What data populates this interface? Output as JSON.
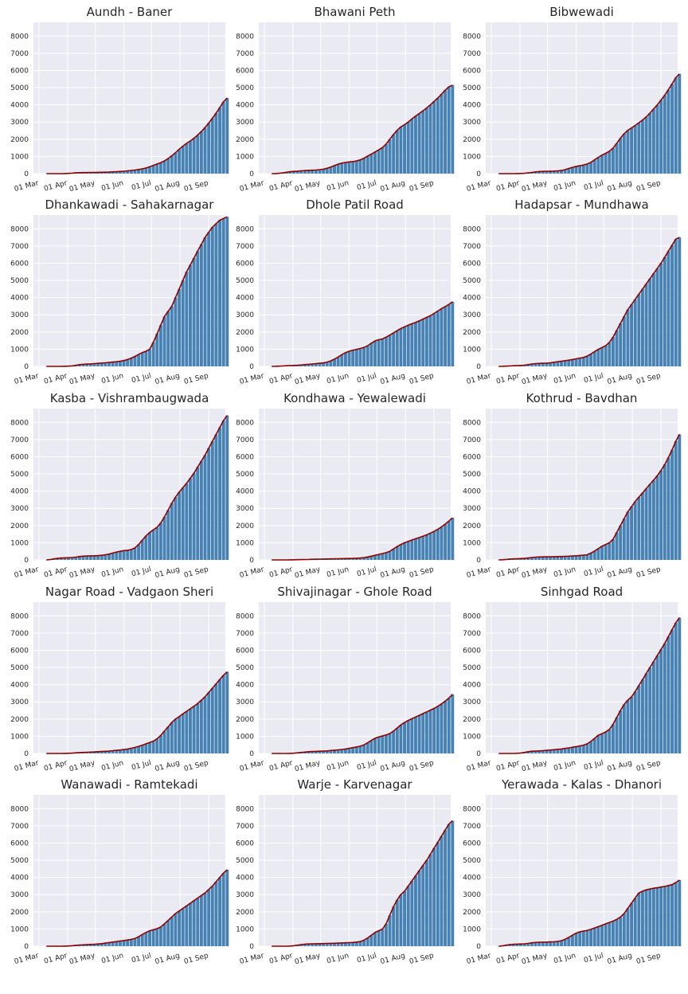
{
  "chart_data": {
    "type": "bar",
    "overlay": "line",
    "ylim": [
      0,
      8800
    ],
    "yticks": [
      0,
      1000,
      2000,
      3000,
      4000,
      5000,
      6000,
      7000,
      8000
    ],
    "x_tick_labels": [
      "01 Mar",
      "01 Apr",
      "01 May",
      "01 Jun",
      "01 Jul",
      "01 Aug",
      "01 Sep"
    ],
    "x_range": [
      "2020-02-24",
      "2020-09-19"
    ],
    "first_date": "2020-03-09",
    "interval_days": 4,
    "grid": true,
    "bar_color": "#4682b4",
    "line_color": "#8b0000",
    "background": "#eaeaf2",
    "panels": [
      {
        "title": "Aundh - Baner",
        "values": [
          0,
          0,
          0,
          0,
          0,
          5,
          15,
          30,
          50,
          55,
          60,
          62,
          65,
          70,
          75,
          80,
          85,
          90,
          100,
          110,
          125,
          140,
          160,
          185,
          210,
          240,
          280,
          330,
          400,
          480,
          560,
          640,
          740,
          880,
          1040,
          1220,
          1420,
          1600,
          1760,
          1900,
          2060,
          2240,
          2450,
          2680,
          2940,
          3220,
          3520,
          3840,
          4180,
          4400
        ]
      },
      {
        "title": "Bhawani Peth",
        "values": [
          0,
          5,
          20,
          40,
          80,
          110,
          130,
          145,
          160,
          175,
          190,
          200,
          210,
          230,
          260,
          310,
          380,
          470,
          550,
          610,
          650,
          680,
          700,
          740,
          800,
          900,
          1020,
          1140,
          1260,
          1380,
          1520,
          1720,
          2000,
          2280,
          2520,
          2720,
          2850,
          3000,
          3180,
          3350,
          3500,
          3650,
          3820,
          4000,
          4200,
          4400,
          4620,
          4850,
          5050,
          5150
        ]
      },
      {
        "title": "Bibwewadi",
        "values": [
          0,
          0,
          0,
          0,
          0,
          5,
          10,
          20,
          40,
          70,
          100,
          120,
          130,
          140,
          145,
          150,
          160,
          180,
          230,
          300,
          360,
          420,
          460,
          500,
          560,
          660,
          800,
          950,
          1080,
          1180,
          1300,
          1480,
          1760,
          2060,
          2320,
          2520,
          2660,
          2800,
          2960,
          3120,
          3300,
          3520,
          3760,
          4000,
          4280,
          4560,
          4880,
          5220,
          5580,
          5800
        ]
      },
      {
        "title": "Dhankawadi - Sahakarnagar",
        "values": [
          0,
          0,
          0,
          0,
          0,
          5,
          15,
          30,
          60,
          100,
          120,
          135,
          145,
          160,
          175,
          190,
          210,
          230,
          250,
          270,
          300,
          340,
          400,
          480,
          580,
          700,
          800,
          880,
          1000,
          1400,
          1900,
          2400,
          2900,
          3200,
          3500,
          4000,
          4500,
          5000,
          5500,
          5900,
          6300,
          6700,
          7100,
          7500,
          7800,
          8100,
          8300,
          8500,
          8600,
          8700
        ]
      },
      {
        "title": "Dhole Patil Road",
        "values": [
          0,
          5,
          15,
          25,
          35,
          45,
          55,
          65,
          80,
          100,
          120,
          140,
          160,
          180,
          200,
          250,
          320,
          420,
          540,
          680,
          800,
          880,
          940,
          990,
          1040,
          1100,
          1200,
          1350,
          1480,
          1550,
          1600,
          1700,
          1820,
          1950,
          2080,
          2200,
          2300,
          2400,
          2480,
          2560,
          2650,
          2750,
          2850,
          2950,
          3080,
          3220,
          3360,
          3480,
          3600,
          3760
        ]
      },
      {
        "title": "Hadapsar - Mundhawa",
        "values": [
          0,
          5,
          15,
          25,
          35,
          45,
          55,
          70,
          100,
          140,
          160,
          170,
          180,
          190,
          210,
          240,
          270,
          300,
          330,
          360,
          400,
          440,
          480,
          520,
          600,
          720,
          860,
          990,
          1100,
          1200,
          1400,
          1700,
          2100,
          2500,
          2900,
          3300,
          3600,
          3900,
          4200,
          4500,
          4800,
          5100,
          5400,
          5700,
          6000,
          6350,
          6700,
          7050,
          7400,
          7500
        ]
      },
      {
        "title": "Kasba - Vishrambaugwada",
        "values": [
          0,
          20,
          60,
          90,
          110,
          120,
          130,
          140,
          160,
          200,
          220,
          230,
          235,
          240,
          250,
          270,
          300,
          340,
          400,
          460,
          500,
          540,
          560,
          600,
          700,
          900,
          1150,
          1400,
          1600,
          1750,
          1900,
          2150,
          2500,
          2900,
          3300,
          3650,
          3950,
          4200,
          4450,
          4750,
          5050,
          5400,
          5750,
          6100,
          6500,
          6900,
          7300,
          7700,
          8100,
          8400
        ]
      },
      {
        "title": "Kondhawa - Yewalewadi",
        "values": [
          0,
          0,
          0,
          0,
          0,
          5,
          10,
          15,
          20,
          25,
          30,
          35,
          40,
          45,
          50,
          55,
          60,
          65,
          70,
          75,
          80,
          85,
          90,
          95,
          110,
          130,
          170,
          220,
          270,
          320,
          370,
          420,
          500,
          640,
          780,
          900,
          1000,
          1080,
          1160,
          1230,
          1300,
          1380,
          1460,
          1560,
          1660,
          1780,
          1920,
          2080,
          2260,
          2450
        ]
      },
      {
        "title": "Kothrud - Bavdhan",
        "values": [
          0,
          10,
          30,
          50,
          60,
          70,
          80,
          90,
          110,
          140,
          160,
          170,
          175,
          180,
          185,
          190,
          195,
          200,
          210,
          220,
          230,
          240,
          260,
          280,
          300,
          400,
          520,
          660,
          800,
          900,
          1000,
          1200,
          1600,
          2000,
          2400,
          2800,
          3100,
          3400,
          3650,
          3900,
          4150,
          4400,
          4650,
          4900,
          5200,
          5550,
          5950,
          6400,
          6900,
          7300
        ]
      },
      {
        "title": "Nagar Road - Vadgaon Sheri",
        "values": [
          0,
          0,
          0,
          0,
          0,
          5,
          10,
          20,
          35,
          50,
          60,
          70,
          80,
          90,
          100,
          110,
          125,
          140,
          160,
          180,
          200,
          230,
          260,
          300,
          350,
          410,
          480,
          560,
          640,
          720,
          850,
          1050,
          1300,
          1550,
          1800,
          2000,
          2150,
          2300,
          2450,
          2600,
          2750,
          2900,
          3100,
          3300,
          3550,
          3800,
          4050,
          4300,
          4550,
          4750
        ]
      },
      {
        "title": "Shivajinagar - Ghole Road",
        "values": [
          0,
          0,
          0,
          0,
          0,
          5,
          15,
          35,
          60,
          80,
          100,
          110,
          120,
          130,
          140,
          150,
          170,
          190,
          210,
          230,
          260,
          300,
          340,
          380,
          420,
          500,
          620,
          760,
          880,
          960,
          1020,
          1080,
          1160,
          1300,
          1480,
          1660,
          1800,
          1920,
          2020,
          2120,
          2220,
          2320,
          2420,
          2520,
          2620,
          2740,
          2880,
          3040,
          3220,
          3440
        ]
      },
      {
        "title": "Sinhgad Road",
        "values": [
          0,
          0,
          0,
          0,
          0,
          10,
          30,
          60,
          100,
          130,
          140,
          150,
          160,
          180,
          200,
          220,
          240,
          260,
          290,
          320,
          360,
          400,
          440,
          480,
          560,
          700,
          880,
          1060,
          1150,
          1250,
          1400,
          1700,
          2100,
          2500,
          2850,
          3100,
          3300,
          3600,
          3950,
          4300,
          4650,
          5000,
          5350,
          5700,
          6050,
          6400,
          6800,
          7200,
          7600,
          7900
        ]
      },
      {
        "title": "Wanawadi - Ramtekadi",
        "values": [
          0,
          0,
          0,
          0,
          0,
          5,
          15,
          30,
          50,
          70,
          80,
          90,
          100,
          110,
          130,
          150,
          180,
          210,
          240,
          270,
          300,
          330,
          360,
          400,
          450,
          550,
          680,
          800,
          900,
          960,
          1020,
          1120,
          1300,
          1500,
          1700,
          1900,
          2050,
          2200,
          2350,
          2500,
          2650,
          2800,
          2950,
          3100,
          3300,
          3500,
          3750,
          4000,
          4250,
          4450
        ]
      },
      {
        "title": "Warje - Karvenagar",
        "values": [
          0,
          0,
          0,
          0,
          0,
          10,
          30,
          60,
          90,
          120,
          130,
          140,
          145,
          150,
          155,
          160,
          165,
          170,
          180,
          190,
          200,
          210,
          220,
          240,
          270,
          350,
          480,
          640,
          800,
          900,
          1000,
          1300,
          1800,
          2300,
          2700,
          3000,
          3200,
          3500,
          3800,
          4100,
          4400,
          4700,
          5000,
          5350,
          5700,
          6050,
          6400,
          6750,
          7100,
          7300
        ]
      },
      {
        "title": "Yerawada - Kalas - Dhanori",
        "values": [
          0,
          20,
          60,
          90,
          110,
          120,
          130,
          140,
          160,
          200,
          220,
          230,
          235,
          240,
          250,
          260,
          280,
          320,
          400,
          520,
          640,
          760,
          840,
          880,
          920,
          980,
          1060,
          1140,
          1220,
          1300,
          1380,
          1460,
          1560,
          1700,
          1900,
          2200,
          2500,
          2800,
          3100,
          3200,
          3280,
          3330,
          3370,
          3400,
          3440,
          3480,
          3530,
          3580,
          3700,
          3850
        ]
      }
    ]
  }
}
